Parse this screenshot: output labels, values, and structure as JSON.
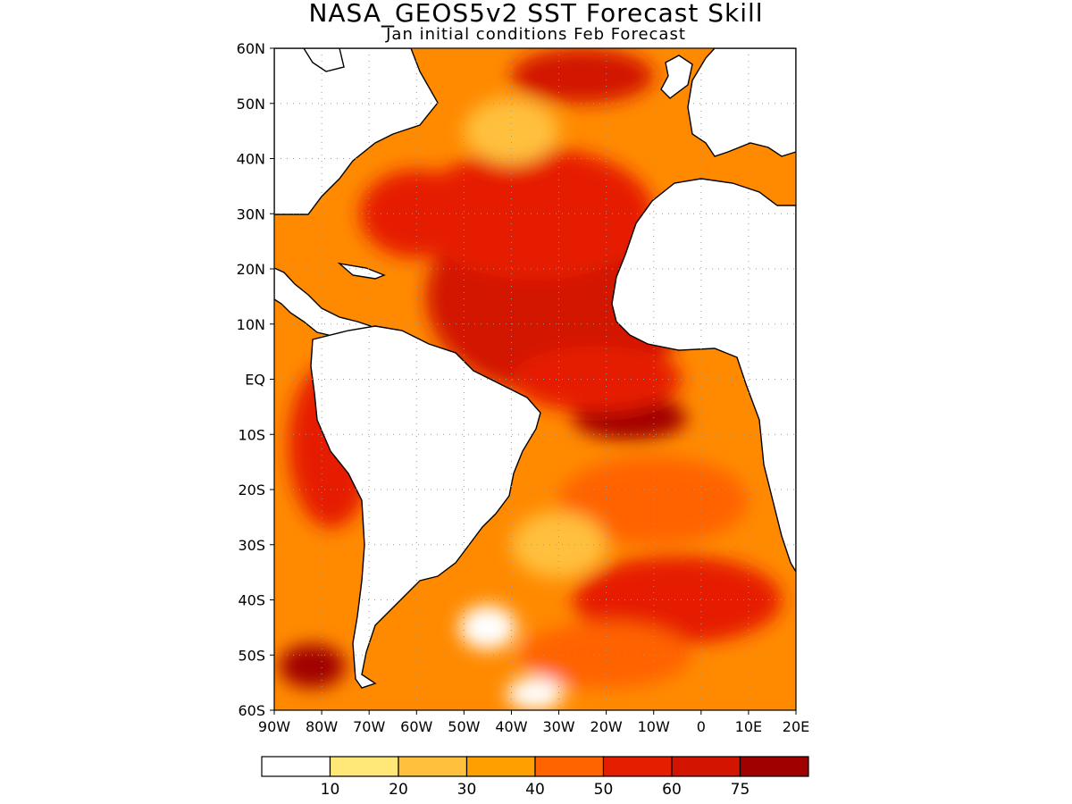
{
  "figure": {
    "title": "NASA_GEOS5v2 SST Forecast Skill",
    "subtitle": "Jan initial conditions  Feb Forecast"
  },
  "map": {
    "region": "Atlantic Ocean",
    "lon_range": [
      -90,
      20
    ],
    "lat_range": [
      -60,
      60
    ],
    "lat_ticks": [
      {
        "value": 60,
        "label": "60N"
      },
      {
        "value": 50,
        "label": "50N"
      },
      {
        "value": 40,
        "label": "40N"
      },
      {
        "value": 30,
        "label": "30N"
      },
      {
        "value": 20,
        "label": "20N"
      },
      {
        "value": 10,
        "label": "10N"
      },
      {
        "value": 0,
        "label": "EQ"
      },
      {
        "value": -10,
        "label": "10S"
      },
      {
        "value": -20,
        "label": "20S"
      },
      {
        "value": -30,
        "label": "30S"
      },
      {
        "value": -40,
        "label": "40S"
      },
      {
        "value": -50,
        "label": "50S"
      },
      {
        "value": -60,
        "label": "60S"
      }
    ],
    "lon_ticks": [
      {
        "value": -90,
        "label": "90W"
      },
      {
        "value": -80,
        "label": "80W"
      },
      {
        "value": -70,
        "label": "70W"
      },
      {
        "value": -60,
        "label": "60W"
      },
      {
        "value": -50,
        "label": "50W"
      },
      {
        "value": -40,
        "label": "40W"
      },
      {
        "value": -30,
        "label": "30W"
      },
      {
        "value": -20,
        "label": "20W"
      },
      {
        "value": -10,
        "label": "10W"
      },
      {
        "value": 0,
        "label": "0"
      },
      {
        "value": 10,
        "label": "10E"
      },
      {
        "value": 20,
        "label": "20E"
      }
    ],
    "grid": "dotted"
  },
  "colorbar": {
    "levels": [
      "10",
      "20",
      "30",
      "40",
      "50",
      "60",
      "75"
    ],
    "colors": [
      "#ffffff",
      "#ffe878",
      "#ffc03c",
      "#ffa000",
      "#ff6400",
      "#e61e00",
      "#d21400",
      "#a00000"
    ]
  },
  "fields": [
    {
      "lon": -30,
      "lat": 15,
      "rx": 28,
      "ry": 18,
      "level": 6
    },
    {
      "lon": -35,
      "lat": 30,
      "rx": 25,
      "ry": 12,
      "level": 5
    },
    {
      "lon": -60,
      "lat": 30,
      "rx": 12,
      "ry": 8,
      "level": 5
    },
    {
      "lon": -15,
      "lat": -7,
      "rx": 12,
      "ry": 4,
      "level": 7
    },
    {
      "lon": -22,
      "lat": 0,
      "rx": 18,
      "ry": 6,
      "level": 5
    },
    {
      "lon": -25,
      "lat": 55,
      "rx": 15,
      "ry": 5,
      "level": 6
    },
    {
      "lon": -40,
      "lat": 45,
      "rx": 10,
      "ry": 6,
      "level": 2
    },
    {
      "lon": -82,
      "lat": -52,
      "rx": 7,
      "ry": 4,
      "level": 7
    },
    {
      "lon": -78,
      "lat": -12,
      "rx": 9,
      "ry": 15,
      "level": 5
    },
    {
      "lon": -10,
      "lat": -22,
      "rx": 20,
      "ry": 8,
      "level": 4
    },
    {
      "lon": -5,
      "lat": -40,
      "rx": 22,
      "ry": 8,
      "level": 5
    },
    {
      "lon": -30,
      "lat": -30,
      "rx": 10,
      "ry": 6,
      "level": 2
    },
    {
      "lon": -45,
      "lat": -45,
      "rx": 6,
      "ry": 4,
      "level": 0
    },
    {
      "lon": -35,
      "lat": -57,
      "rx": 6,
      "ry": 3,
      "level": 0
    },
    {
      "lon": -20,
      "lat": -50,
      "rx": 18,
      "ry": 6,
      "level": 4
    }
  ]
}
